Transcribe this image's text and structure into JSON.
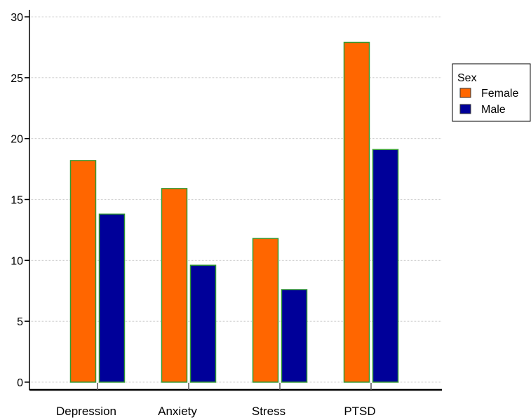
{
  "chart_data": {
    "type": "bar",
    "categories": [
      "Depression",
      "Anxiety",
      "Stress",
      "PTSD"
    ],
    "series": [
      {
        "name": "Female",
        "values": [
          18.2,
          15.9,
          11.8,
          27.9
        ]
      },
      {
        "name": "Male",
        "values": [
          13.8,
          9.6,
          7.6,
          19.1
        ]
      }
    ],
    "ylim": [
      0,
      30
    ],
    "yticks": [
      0,
      5,
      10,
      15,
      20,
      25,
      30
    ],
    "grid": "horizontal",
    "legend": {
      "title": "Sex",
      "position": "right"
    },
    "colors": {
      "Female": "#ff6600",
      "Male": "#000099",
      "bar_edge": "#339933",
      "grid": "#c0c0c0",
      "axis": "#000000"
    }
  }
}
